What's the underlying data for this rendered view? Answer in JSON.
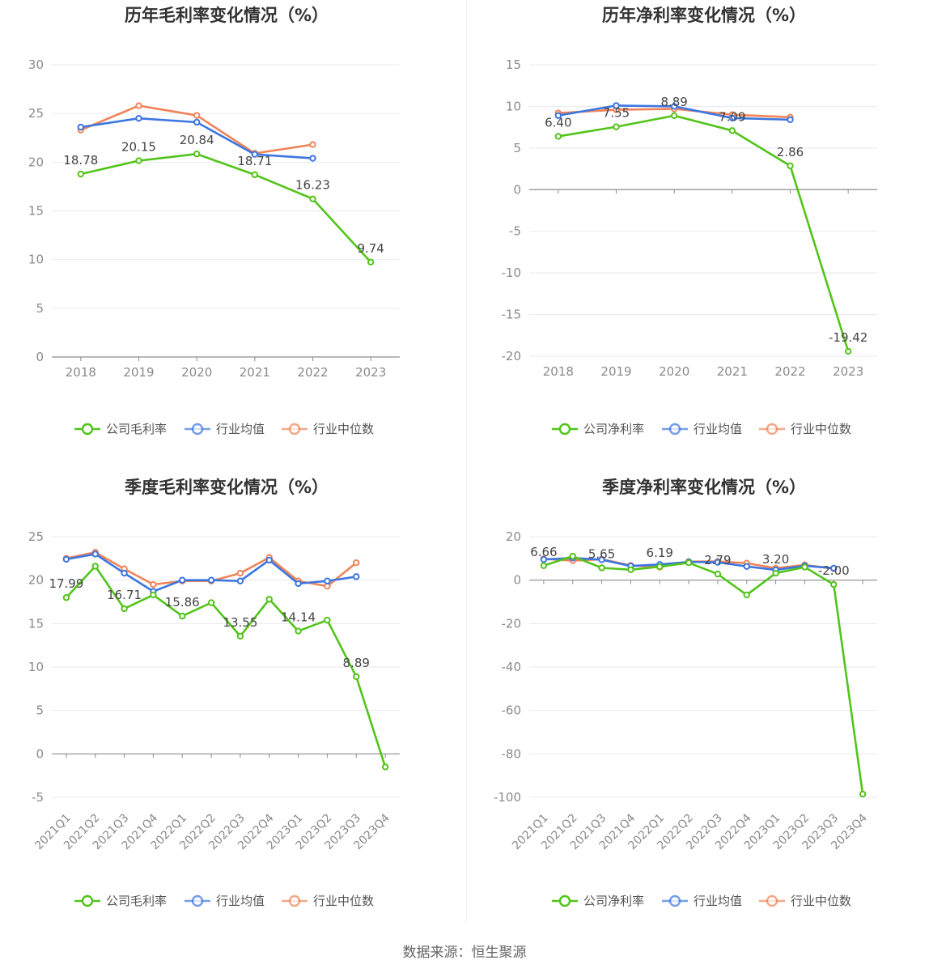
{
  "source": "数据来源：恒生聚源",
  "colors": {
    "company": "#52c41a",
    "avg": "#3b76e1",
    "median": "#f08458",
    "grid": "#e6e9f0",
    "axis": "#8c8c8c"
  },
  "chart_data": [
    {
      "type": "line",
      "title": "历年毛利率变化情况（%）",
      "categories": [
        "2018",
        "2019",
        "2020",
        "2021",
        "2022",
        "2023"
      ],
      "ylim": [
        0,
        30
      ],
      "yticks": [
        0,
        5,
        10,
        15,
        20,
        25,
        30
      ],
      "series": [
        {
          "name": "公司毛利率",
          "values": [
            18.78,
            20.15,
            20.84,
            18.71,
            16.23,
            9.74
          ],
          "labels": [
            "18.78",
            "20.15",
            "20.84",
            "18.71",
            "16.23",
            "9.74"
          ]
        },
        {
          "name": "行业均值",
          "values": [
            23.6,
            24.5,
            24.1,
            20.8,
            20.4,
            null
          ]
        },
        {
          "name": "行业中位数",
          "values": [
            23.3,
            25.8,
            24.8,
            20.9,
            21.8,
            null
          ]
        }
      ],
      "legend": "bottom"
    },
    {
      "type": "line",
      "title": "历年净利率变化情况（%）",
      "categories": [
        "2018",
        "2019",
        "2020",
        "2021",
        "2022",
        "2023"
      ],
      "ylim": [
        -20,
        15
      ],
      "yticks": [
        -20,
        -15,
        -10,
        -5,
        0,
        5,
        10,
        15
      ],
      "series": [
        {
          "name": "公司净利率",
          "values": [
            6.4,
            7.55,
            8.89,
            7.09,
            2.86,
            -19.42
          ],
          "labels": [
            "6.40",
            "7.55",
            "8.89",
            "7.09",
            "2.86",
            "-19.42"
          ]
        },
        {
          "name": "行业均值",
          "values": [
            8.9,
            10.1,
            10.0,
            8.6,
            8.4,
            null
          ]
        },
        {
          "name": "行业中位数",
          "values": [
            9.2,
            9.6,
            9.7,
            9.0,
            8.7,
            null
          ]
        }
      ],
      "legend": "bottom"
    },
    {
      "type": "line",
      "title": "季度毛利率变化情况（%）",
      "categories": [
        "2021Q1",
        "2021Q2",
        "2021Q3",
        "2021Q4",
        "2022Q1",
        "2022Q2",
        "2022Q3",
        "2022Q4",
        "2023Q1",
        "2023Q2",
        "2023Q3",
        "2023Q4"
      ],
      "ylim": [
        -5,
        25
      ],
      "yticks": [
        -5,
        0,
        5,
        10,
        15,
        20,
        25
      ],
      "series": [
        {
          "name": "公司毛利率",
          "values": [
            17.99,
            21.6,
            16.71,
            18.3,
            15.86,
            17.4,
            13.55,
            17.8,
            14.14,
            15.4,
            8.89,
            -1.5
          ],
          "labels": [
            "17.99",
            "",
            "16.71",
            "",
            "15.86",
            "",
            "13.55",
            "",
            "14.14",
            "",
            "8.89",
            ""
          ]
        },
        {
          "name": "行业均值",
          "values": [
            22.4,
            23.0,
            20.8,
            18.7,
            20.0,
            20.0,
            19.9,
            22.3,
            19.6,
            19.9,
            20.4,
            null
          ]
        },
        {
          "name": "行业中位数",
          "values": [
            22.5,
            23.2,
            21.3,
            19.5,
            19.9,
            19.9,
            20.8,
            22.6,
            19.9,
            19.3,
            22.0,
            null
          ]
        }
      ],
      "legend": "bottom"
    },
    {
      "type": "line",
      "title": "季度净利率变化情况（%）",
      "categories": [
        "2021Q1",
        "2021Q2",
        "2021Q3",
        "2021Q4",
        "2022Q1",
        "2022Q2",
        "2022Q3",
        "2022Q4",
        "2023Q1",
        "2023Q2",
        "2023Q3",
        "2023Q4"
      ],
      "ylim": [
        -100,
        20
      ],
      "yticks": [
        -100,
        -80,
        -60,
        -40,
        -20,
        0,
        20
      ],
      "series": [
        {
          "name": "公司净利率",
          "values": [
            6.66,
            11.0,
            5.65,
            4.8,
            6.19,
            8.0,
            2.79,
            -6.8,
            3.2,
            6.0,
            -2.0,
            -98.5
          ],
          "labels": [
            "6.66",
            "",
            "5.65",
            "",
            "6.19",
            "",
            "2.79",
            "",
            "3.20",
            "",
            "-2.00",
            ""
          ]
        },
        {
          "name": "行业均值",
          "values": [
            9.5,
            10.2,
            9.4,
            6.5,
            7.2,
            8.4,
            8.2,
            6.3,
            4.7,
            6.6,
            5.5,
            null
          ]
        },
        {
          "name": "行业中位数",
          "values": [
            9.8,
            9.0,
            9.6,
            6.8,
            6.0,
            8.5,
            8.6,
            7.8,
            5.5,
            7.0,
            5.3,
            null
          ]
        }
      ],
      "legend": "bottom"
    }
  ]
}
